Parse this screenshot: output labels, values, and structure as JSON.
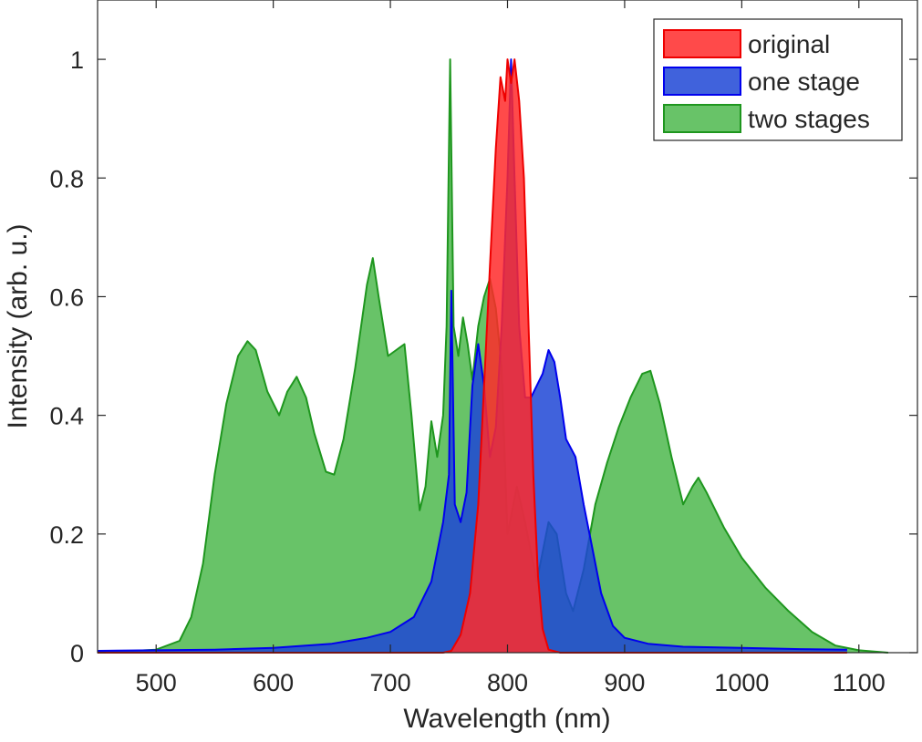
{
  "chart_data": {
    "type": "area",
    "xlabel": "Wavelength (nm)",
    "ylabel": "Intensity (arb. u.)",
    "xlim": [
      450,
      1150
    ],
    "ylim": [
      0,
      1.1
    ],
    "xticks": [
      500,
      600,
      700,
      800,
      900,
      1000,
      1100
    ],
    "yticks": [
      0,
      0.2,
      0.4,
      0.6,
      0.8,
      1
    ],
    "ytick_labels": [
      "0",
      "0.2",
      "0.4",
      "0.6",
      "0.8",
      "1"
    ],
    "grid": false,
    "legend_position": "top-right",
    "series": [
      {
        "name": "two stages",
        "fill": "#4db84d",
        "stroke": "#1e961e",
        "points": [
          [
            450,
            0.0
          ],
          [
            500,
            0.005
          ],
          [
            520,
            0.02
          ],
          [
            530,
            0.06
          ],
          [
            540,
            0.15
          ],
          [
            550,
            0.3
          ],
          [
            560,
            0.42
          ],
          [
            570,
            0.5
          ],
          [
            578,
            0.525
          ],
          [
            585,
            0.51
          ],
          [
            595,
            0.44
          ],
          [
            605,
            0.4
          ],
          [
            612,
            0.44
          ],
          [
            620,
            0.465
          ],
          [
            628,
            0.43
          ],
          [
            635,
            0.37
          ],
          [
            645,
            0.305
          ],
          [
            652,
            0.3
          ],
          [
            660,
            0.36
          ],
          [
            670,
            0.48
          ],
          [
            680,
            0.62
          ],
          [
            685,
            0.665
          ],
          [
            690,
            0.6
          ],
          [
            698,
            0.5
          ],
          [
            705,
            0.51
          ],
          [
            712,
            0.52
          ],
          [
            718,
            0.4
          ],
          [
            725,
            0.24
          ],
          [
            730,
            0.28
          ],
          [
            735,
            0.39
          ],
          [
            740,
            0.33
          ],
          [
            745,
            0.4
          ],
          [
            748,
            0.55
          ],
          [
            751,
            1.0
          ],
          [
            754,
            0.55
          ],
          [
            758,
            0.5
          ],
          [
            762,
            0.565
          ],
          [
            766,
            0.52
          ],
          [
            770,
            0.46
          ],
          [
            775,
            0.55
          ],
          [
            780,
            0.6
          ],
          [
            785,
            0.63
          ],
          [
            790,
            0.58
          ],
          [
            795,
            0.48
          ],
          [
            800,
            0.2
          ],
          [
            808,
            0.28
          ],
          [
            815,
            0.22
          ],
          [
            825,
            0.12
          ],
          [
            835,
            0.22
          ],
          [
            842,
            0.2
          ],
          [
            850,
            0.1
          ],
          [
            856,
            0.07
          ],
          [
            865,
            0.14
          ],
          [
            875,
            0.25
          ],
          [
            885,
            0.32
          ],
          [
            895,
            0.38
          ],
          [
            905,
            0.43
          ],
          [
            915,
            0.47
          ],
          [
            922,
            0.475
          ],
          [
            930,
            0.42
          ],
          [
            940,
            0.33
          ],
          [
            950,
            0.25
          ],
          [
            958,
            0.28
          ],
          [
            963,
            0.295
          ],
          [
            970,
            0.27
          ],
          [
            985,
            0.21
          ],
          [
            1000,
            0.16
          ],
          [
            1020,
            0.11
          ],
          [
            1040,
            0.07
          ],
          [
            1060,
            0.035
          ],
          [
            1080,
            0.012
          ],
          [
            1100,
            0.004
          ],
          [
            1125,
            0.0
          ]
        ]
      },
      {
        "name": "one stage",
        "fill": "#1f46d6",
        "stroke": "#0000ee",
        "points": [
          [
            450,
            0.003
          ],
          [
            550,
            0.005
          ],
          [
            600,
            0.008
          ],
          [
            650,
            0.015
          ],
          [
            680,
            0.025
          ],
          [
            700,
            0.035
          ],
          [
            720,
            0.06
          ],
          [
            735,
            0.12
          ],
          [
            745,
            0.22
          ],
          [
            750,
            0.3
          ],
          [
            752,
            0.61
          ],
          [
            755,
            0.25
          ],
          [
            760,
            0.22
          ],
          [
            765,
            0.27
          ],
          [
            770,
            0.45
          ],
          [
            775,
            0.52
          ],
          [
            780,
            0.45
          ],
          [
            785,
            0.33
          ],
          [
            790,
            0.38
          ],
          [
            795,
            0.55
          ],
          [
            800,
            0.8
          ],
          [
            803,
            1.0
          ],
          [
            806,
            0.8
          ],
          [
            810,
            0.55
          ],
          [
            815,
            0.43
          ],
          [
            820,
            0.43
          ],
          [
            830,
            0.47
          ],
          [
            835,
            0.51
          ],
          [
            840,
            0.49
          ],
          [
            845,
            0.43
          ],
          [
            850,
            0.36
          ],
          [
            858,
            0.33
          ],
          [
            865,
            0.25
          ],
          [
            872,
            0.18
          ],
          [
            880,
            0.1
          ],
          [
            890,
            0.045
          ],
          [
            900,
            0.025
          ],
          [
            920,
            0.015
          ],
          [
            950,
            0.01
          ],
          [
            1000,
            0.008
          ],
          [
            1050,
            0.006
          ],
          [
            1090,
            0.005
          ]
        ]
      },
      {
        "name": "original",
        "fill": "#ff2a2a",
        "stroke": "#ee0000",
        "points": [
          [
            450,
            0.0
          ],
          [
            745,
            0.0
          ],
          [
            752,
            0.003
          ],
          [
            760,
            0.03
          ],
          [
            768,
            0.1
          ],
          [
            775,
            0.25
          ],
          [
            780,
            0.45
          ],
          [
            785,
            0.65
          ],
          [
            790,
            0.85
          ],
          [
            794,
            0.97
          ],
          [
            798,
            0.93
          ],
          [
            800,
            1.0
          ],
          [
            803,
            0.96
          ],
          [
            806,
            1.0
          ],
          [
            810,
            0.93
          ],
          [
            814,
            0.8
          ],
          [
            818,
            0.55
          ],
          [
            822,
            0.3
          ],
          [
            826,
            0.13
          ],
          [
            830,
            0.04
          ],
          [
            835,
            0.005
          ],
          [
            845,
            0.0
          ],
          [
            1090,
            0.0
          ]
        ]
      }
    ]
  }
}
